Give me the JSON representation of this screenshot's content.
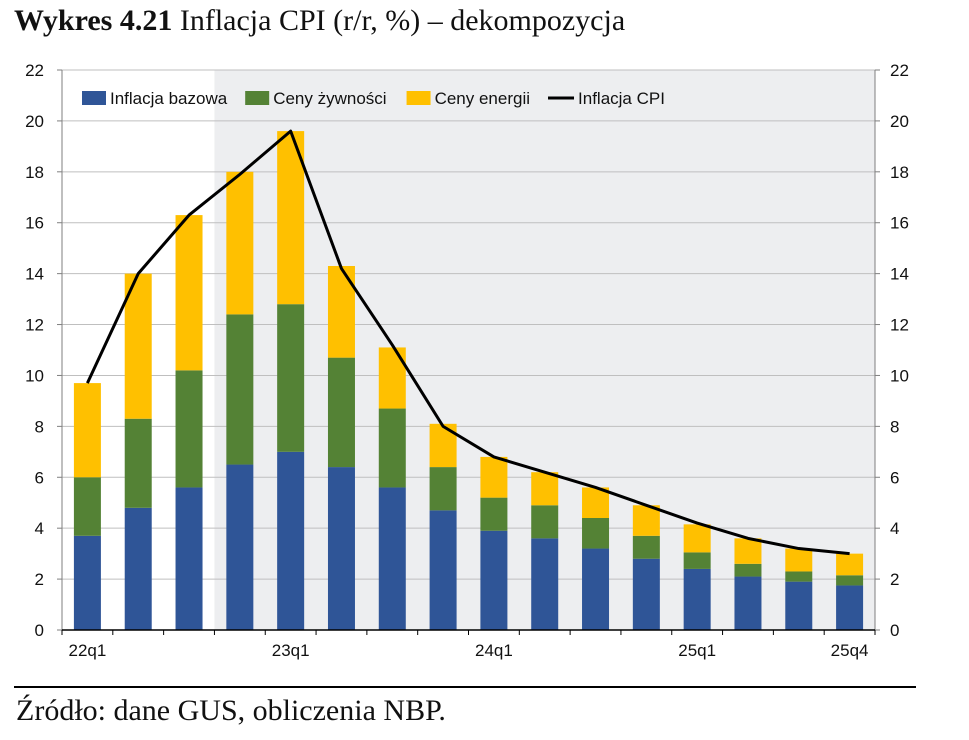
{
  "title": {
    "bold": "Wykres 4.21",
    "rest": " Inflacja CPI (r/r, %) – dekompozycja"
  },
  "source": "Źródło: dane GUS, obliczenia NBP.",
  "colors": {
    "core": "#2f5597",
    "food": "#548235",
    "energy": "#ffc000",
    "cpi": "#000000",
    "projection_bg": "#edeef0",
    "grid": "#bfbfbf"
  },
  "chart_data": {
    "type": "bar",
    "stacked": true,
    "title": "Inflacja CPI (r/r, %) – dekompozycja",
    "categories": [
      "22q1",
      "22q2",
      "22q3",
      "22q4",
      "23q1",
      "23q2",
      "23q3",
      "23q4",
      "24q1",
      "24q2",
      "24q3",
      "24q4",
      "25q1",
      "25q2",
      "25q3",
      "25q4"
    ],
    "x_tick_labels": [
      {
        "index": 0,
        "label": "22q1"
      },
      {
        "index": 4,
        "label": "23q1"
      },
      {
        "index": 8,
        "label": "24q1"
      },
      {
        "index": 12,
        "label": "25q1"
      },
      {
        "index": 15,
        "label": "25q4"
      }
    ],
    "shaded_from_index": 3,
    "series": [
      {
        "name": "Inflacja bazowa",
        "kind": "bar",
        "color": "#2f5597",
        "values": [
          3.7,
          4.8,
          5.6,
          6.5,
          7.0,
          6.4,
          5.6,
          4.7,
          3.9,
          3.6,
          3.2,
          2.8,
          2.4,
          2.1,
          1.9,
          1.75
        ]
      },
      {
        "name": "Ceny żywności",
        "kind": "bar",
        "color": "#548235",
        "values": [
          2.3,
          3.5,
          4.6,
          5.9,
          5.8,
          4.3,
          3.1,
          1.7,
          1.3,
          1.3,
          1.2,
          0.9,
          0.65,
          0.5,
          0.4,
          0.4
        ]
      },
      {
        "name": "Ceny energii",
        "kind": "bar",
        "color": "#ffc000",
        "values": [
          3.7,
          5.7,
          6.1,
          5.6,
          6.8,
          3.6,
          2.4,
          1.7,
          1.6,
          1.3,
          1.2,
          1.2,
          1.1,
          1.0,
          0.9,
          0.85
        ]
      },
      {
        "name": "Inflacja CPI",
        "kind": "line",
        "color": "#000000",
        "values": [
          9.7,
          14.0,
          16.3,
          17.9,
          19.6,
          14.2,
          11.2,
          8.0,
          6.8,
          6.2,
          5.6,
          4.9,
          4.2,
          3.6,
          3.2,
          3.0
        ]
      }
    ],
    "ylim": [
      0,
      22
    ],
    "yticks": [
      0,
      2,
      4,
      6,
      8,
      10,
      12,
      14,
      16,
      18,
      20,
      22
    ],
    "secondary_axis": true,
    "grid": true,
    "legend_position": "top",
    "xlabel": "",
    "ylabel": ""
  }
}
